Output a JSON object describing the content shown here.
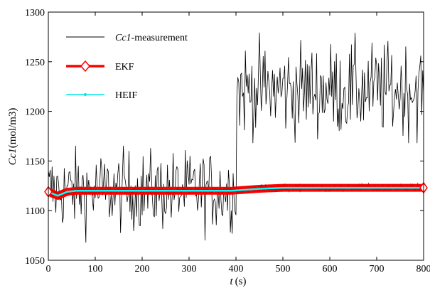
{
  "chart_data": {
    "type": "line",
    "xlabel_var": "t",
    "xlabel_unit": "(s)",
    "ylabel_var": "Cc1",
    "ylabel_unit": "(mol/m3)",
    "xlim": [
      0,
      800
    ],
    "ylim": [
      1050,
      1300
    ],
    "xticks": [
      0,
      100,
      200,
      300,
      400,
      500,
      600,
      700,
      800
    ],
    "yticks": [
      1050,
      1100,
      1150,
      1200,
      1250,
      1300
    ],
    "grid": false,
    "legend_position": "top-left",
    "legend": [
      {
        "name_italic": "Cc1",
        "name_rest": "-measurement"
      },
      {
        "name_italic": "",
        "name_rest": "EKF"
      },
      {
        "name_italic": "",
        "name_rest": "HEIF"
      }
    ],
    "series": [
      {
        "name": "Cc1-measurement",
        "color": "#000000",
        "step_time": 400,
        "segments": [
          {
            "x_range": [
              0,
              400
            ],
            "mean": 1120,
            "min": 1067,
            "max": 1176
          },
          {
            "x_range": [
              400,
              800
            ],
            "mean": 1222,
            "min": 1168,
            "max": 1296
          }
        ]
      },
      {
        "name": "EKF",
        "color": "#ff0000",
        "marker": "diamond",
        "x": [
          0,
          10,
          20,
          30,
          40,
          60,
          100,
          200,
          300,
          390,
          420,
          450,
          500,
          600,
          700,
          800
        ],
        "y": [
          1119,
          1117,
          1115,
          1117,
          1119,
          1120,
          1120,
          1120,
          1120,
          1120,
          1121,
          1122,
          1123,
          1123,
          1123,
          1123
        ]
      },
      {
        "name": "HEIF",
        "color": "#00ffff",
        "marker": "dot",
        "x": [
          0,
          10,
          20,
          30,
          40,
          60,
          100,
          200,
          300,
          390,
          420,
          450,
          500,
          600,
          700,
          800
        ],
        "y": [
          1119,
          1117,
          1115,
          1117,
          1119,
          1120,
          1120,
          1120,
          1120,
          1120,
          1121,
          1122,
          1123,
          1123,
          1123,
          1123
        ]
      }
    ]
  }
}
